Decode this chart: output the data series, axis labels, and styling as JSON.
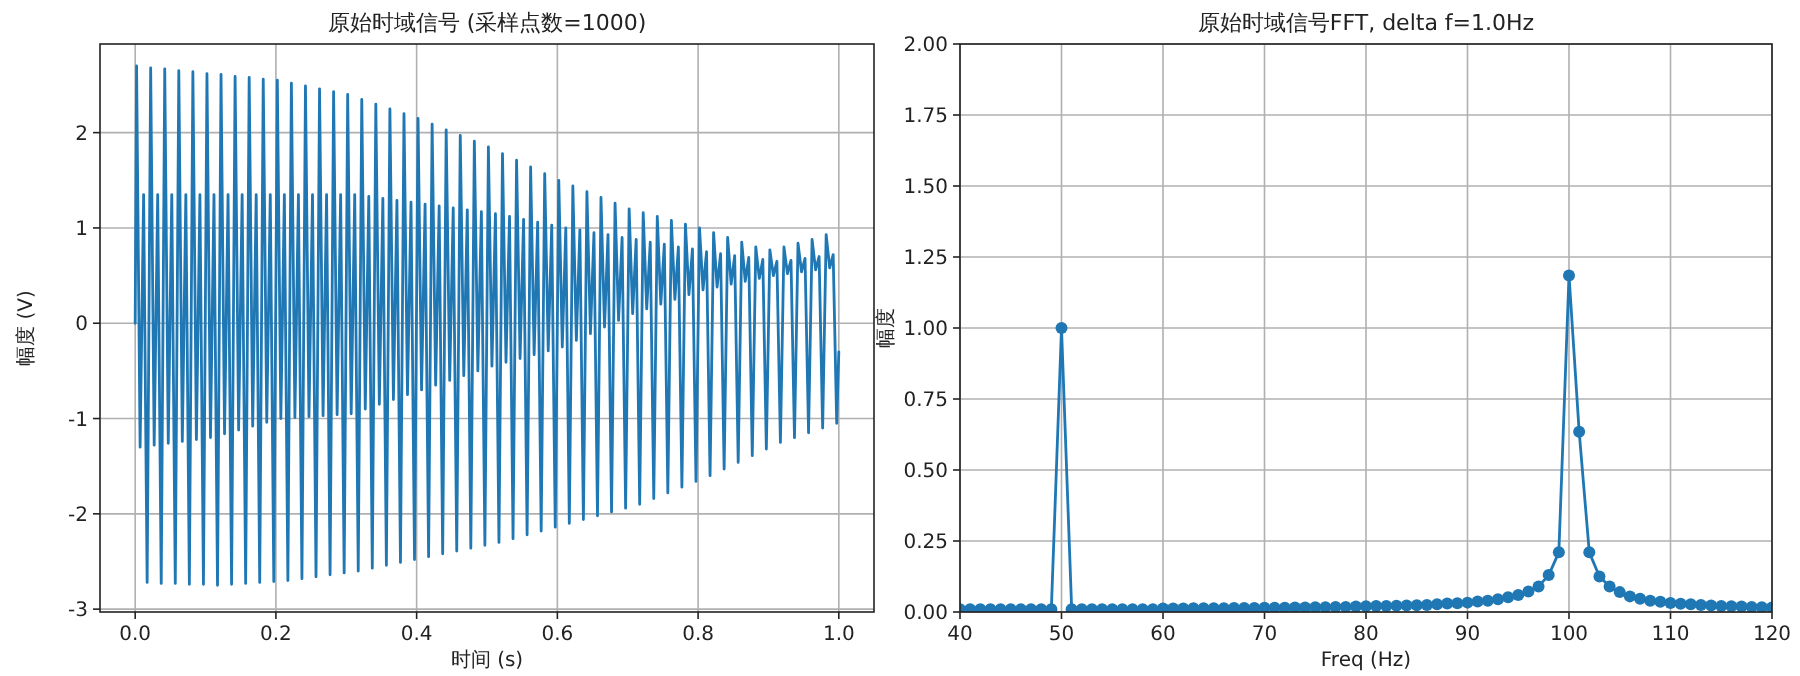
{
  "chart_data": [
    {
      "type": "line",
      "title": "原始时域信号 (采样点数=1000)",
      "xlabel": "时间 (s)",
      "ylabel": "幅度 (V)",
      "grid": true,
      "marker": "none",
      "line_style": "solid",
      "xlim": [
        -0.05,
        1.05
      ],
      "ylim": [
        -3.03,
        2.93
      ],
      "xticks": [
        {
          "value": 0,
          "label": "0.0"
        },
        {
          "value": 0.2,
          "label": "0.2"
        },
        {
          "value": 0.4,
          "label": "0.4"
        },
        {
          "value": 0.6,
          "label": "0.6"
        },
        {
          "value": 0.8,
          "label": "0.8"
        },
        {
          "value": 1,
          "label": "1.0"
        }
      ],
      "yticks": [
        -3,
        -2,
        -1,
        0,
        1,
        2
      ],
      "series": [
        {
          "color": "#1f77b4",
          "x": [
            0,
            0.002,
            0.007,
            0.012,
            0.017,
            0.022,
            0.027,
            0.032,
            0.037,
            0.042,
            0.047,
            0.052,
            0.057,
            0.062,
            0.067,
            0.072,
            0.077,
            0.082,
            0.087,
            0.092,
            0.097,
            0.102,
            0.107,
            0.112,
            0.117,
            0.122,
            0.127,
            0.132,
            0.137,
            0.142,
            0.147,
            0.152,
            0.157,
            0.162,
            0.167,
            0.172,
            0.177,
            0.182,
            0.187,
            0.192,
            0.197,
            0.202,
            0.207,
            0.212,
            0.217,
            0.222,
            0.227,
            0.232,
            0.237,
            0.242,
            0.247,
            0.252,
            0.257,
            0.262,
            0.267,
            0.272,
            0.277,
            0.282,
            0.287,
            0.292,
            0.297,
            0.302,
            0.307,
            0.312,
            0.317,
            0.322,
            0.327,
            0.332,
            0.337,
            0.342,
            0.347,
            0.352,
            0.357,
            0.362,
            0.367,
            0.372,
            0.377,
            0.382,
            0.387,
            0.392,
            0.397,
            0.402,
            0.407,
            0.412,
            0.417,
            0.422,
            0.427,
            0.432,
            0.437,
            0.442,
            0.447,
            0.452,
            0.457,
            0.462,
            0.467,
            0.472,
            0.477,
            0.482,
            0.487,
            0.492,
            0.497,
            0.502,
            0.507,
            0.512,
            0.517,
            0.522,
            0.527,
            0.532,
            0.537,
            0.542,
            0.547,
            0.552,
            0.557,
            0.562,
            0.567,
            0.572,
            0.577,
            0.582,
            0.587,
            0.592,
            0.597,
            0.602,
            0.607,
            0.612,
            0.617,
            0.622,
            0.627,
            0.632,
            0.637,
            0.642,
            0.647,
            0.652,
            0.657,
            0.662,
            0.667,
            0.672,
            0.677,
            0.682,
            0.687,
            0.692,
            0.697,
            0.702,
            0.707,
            0.712,
            0.717,
            0.722,
            0.727,
            0.732,
            0.737,
            0.742,
            0.747,
            0.752,
            0.757,
            0.762,
            0.767,
            0.772,
            0.777,
            0.782,
            0.787,
            0.792,
            0.797,
            0.802,
            0.807,
            0.812,
            0.817,
            0.822,
            0.827,
            0.832,
            0.837,
            0.842,
            0.847,
            0.852,
            0.857,
            0.862,
            0.867,
            0.872,
            0.877,
            0.882,
            0.887,
            0.892,
            0.897,
            0.902,
            0.907,
            0.912,
            0.917,
            0.922,
            0.927,
            0.932,
            0.937,
            0.942,
            0.947,
            0.952,
            0.957,
            0.962,
            0.967,
            0.972,
            0.977,
            0.982,
            0.987,
            0.992,
            0.997,
            1.0
          ],
          "values": [
            0,
            2.7,
            -1.3,
            1.35,
            -2.72,
            2.68,
            -1.28,
            1.35,
            -2.73,
            2.67,
            -1.26,
            1.35,
            -2.73,
            2.65,
            -1.24,
            1.35,
            -2.74,
            2.64,
            -1.22,
            1.35,
            -2.74,
            2.62,
            -1.2,
            1.35,
            -2.75,
            2.61,
            -1.16,
            1.35,
            -2.74,
            2.59,
            -1.12,
            1.35,
            -2.73,
            2.58,
            -1.08,
            1.35,
            -2.72,
            2.56,
            -1.04,
            1.35,
            -2.71,
            2.55,
            -1.0,
            1.35,
            -2.7,
            2.52,
            -0.99,
            1.35,
            -2.68,
            2.49,
            -0.98,
            1.35,
            -2.66,
            2.46,
            -0.97,
            1.35,
            -2.64,
            2.43,
            -0.96,
            1.35,
            -2.62,
            2.4,
            -0.95,
            1.35,
            -2.6,
            2.35,
            -0.9,
            1.33,
            -2.57,
            2.3,
            -0.85,
            1.31,
            -2.54,
            2.25,
            -0.8,
            1.29,
            -2.51,
            2.2,
            -0.75,
            1.27,
            -2.48,
            2.15,
            -0.7,
            1.25,
            -2.45,
            2.09,
            -0.65,
            1.23,
            -2.42,
            2.03,
            -0.6,
            1.21,
            -2.39,
            1.97,
            -0.55,
            1.19,
            -2.36,
            1.91,
            -0.5,
            1.17,
            -2.33,
            1.85,
            -0.45,
            1.15,
            -2.3,
            1.78,
            -0.41,
            1.12,
            -2.26,
            1.71,
            -0.37,
            1.09,
            -2.22,
            1.64,
            -0.33,
            1.06,
            -2.18,
            1.57,
            -0.29,
            1.03,
            -2.14,
            1.5,
            -0.25,
            1.0,
            -2.1,
            1.44,
            -0.18,
            0.98,
            -2.06,
            1.38,
            -0.11,
            0.95,
            -2.02,
            1.32,
            -0.04,
            0.93,
            -1.98,
            1.26,
            0.03,
            0.9,
            -1.94,
            1.2,
            0.1,
            0.88,
            -1.9,
            1.16,
            0.15,
            0.85,
            -1.84,
            1.12,
            0.2,
            0.83,
            -1.78,
            1.08,
            0.25,
            0.8,
            -1.72,
            1.04,
            0.3,
            0.78,
            -1.66,
            1.0,
            0.35,
            0.75,
            -1.6,
            0.95,
            0.38,
            0.73,
            -1.53,
            0.9,
            0.41,
            0.71,
            -1.46,
            0.85,
            0.44,
            0.69,
            -1.39,
            0.8,
            0.47,
            0.67,
            -1.32,
            0.77,
            0.5,
            0.65,
            -1.25,
            0.8,
            0.52,
            0.66,
            -1.2,
            0.84,
            0.54,
            0.68,
            -1.15,
            0.88,
            0.56,
            0.7,
            -1.1,
            0.93,
            0.58,
            0.72,
            -1.05,
            -0.3
          ]
        }
      ]
    },
    {
      "type": "line",
      "title": "原始时域信号FFT, delta f=1.0Hz",
      "xlabel": "Freq (Hz)",
      "ylabel": "幅度",
      "grid": true,
      "marker": "circle",
      "line_style": "solid",
      "xlim": [
        40,
        120
      ],
      "ylim": [
        0,
        2
      ],
      "xticks": [
        40,
        50,
        60,
        70,
        80,
        90,
        100,
        110,
        120
      ],
      "yticks": [
        {
          "value": 0,
          "label": "0.00"
        },
        {
          "value": 0.25,
          "label": "0.25"
        },
        {
          "value": 0.5,
          "label": "0.50"
        },
        {
          "value": 0.75,
          "label": "0.75"
        },
        {
          "value": 1,
          "label": "1.00"
        },
        {
          "value": 1.25,
          "label": "1.25"
        },
        {
          "value": 1.5,
          "label": "1.50"
        },
        {
          "value": 1.75,
          "label": "1.75"
        },
        {
          "value": 2,
          "label": "2.00"
        }
      ],
      "series": [
        {
          "color": "#1f77b4",
          "x": [
            40,
            41,
            42,
            43,
            44,
            45,
            46,
            47,
            48,
            49,
            50,
            51,
            52,
            53,
            54,
            55,
            56,
            57,
            58,
            59,
            60,
            61,
            62,
            63,
            64,
            65,
            66,
            67,
            68,
            69,
            70,
            71,
            72,
            73,
            74,
            75,
            76,
            77,
            78,
            79,
            80,
            81,
            82,
            83,
            84,
            85,
            86,
            87,
            88,
            89,
            90,
            91,
            92,
            93,
            94,
            95,
            96,
            97,
            98,
            99,
            100,
            101,
            102,
            103,
            104,
            105,
            106,
            107,
            108,
            109,
            110,
            111,
            112,
            113,
            114,
            115,
            116,
            117,
            118,
            119,
            120
          ],
          "values": [
            0.01,
            0.01,
            0.01,
            0.01,
            0.01,
            0.01,
            0.01,
            0.01,
            0.01,
            0.01,
            1.0,
            0.01,
            0.01,
            0.01,
            0.01,
            0.01,
            0.01,
            0.01,
            0.01,
            0.01,
            0.012,
            0.012,
            0.012,
            0.013,
            0.013,
            0.013,
            0.013,
            0.014,
            0.014,
            0.014,
            0.015,
            0.015,
            0.015,
            0.016,
            0.016,
            0.017,
            0.017,
            0.018,
            0.018,
            0.019,
            0.02,
            0.021,
            0.021,
            0.022,
            0.023,
            0.024,
            0.025,
            0.027,
            0.03,
            0.031,
            0.033,
            0.037,
            0.04,
            0.045,
            0.052,
            0.06,
            0.072,
            0.09,
            0.13,
            0.21,
            1.185,
            0.635,
            0.21,
            0.125,
            0.09,
            0.07,
            0.055,
            0.047,
            0.04,
            0.036,
            0.032,
            0.029,
            0.027,
            0.025,
            0.023,
            0.021,
            0.02,
            0.019,
            0.018,
            0.017,
            0.016
          ]
        }
      ]
    }
  ]
}
